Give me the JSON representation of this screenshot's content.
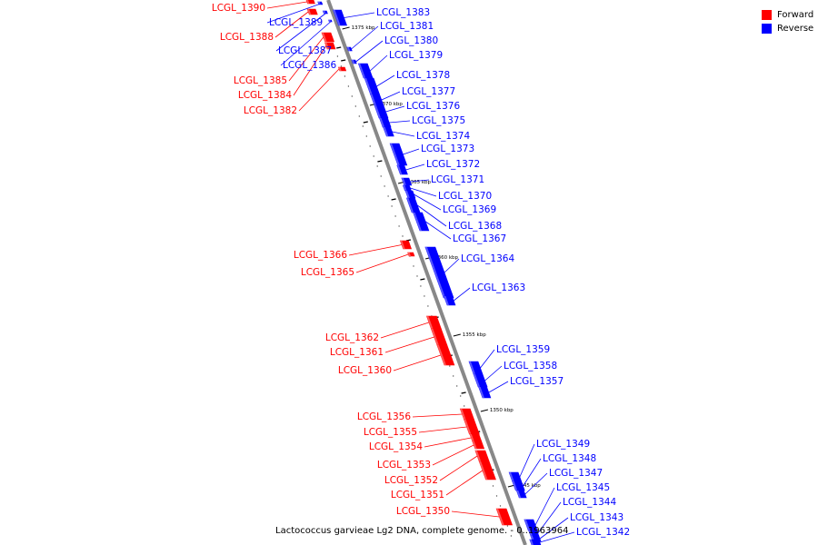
{
  "legend": [
    {
      "label": "Forward",
      "color": "#ff0000"
    },
    {
      "label": "Reverse",
      "color": "#0000ff"
    }
  ],
  "caption": "Lactococcus garvieae Lg2 DNA, complete genome. - 0..1963964",
  "backbone_color": "#888888",
  "gene_colors": {
    "forward": "#ff0000",
    "reverse": "#0000ff"
  },
  "ticks": [
    "1375 kbp",
    "1370 kbp",
    "1365 kbp",
    "1360 kbp",
    "1355 kbp",
    "1350 kbp",
    "1345 kbp"
  ],
  "genes": [
    {
      "name": "LCGL_1390",
      "strand": "forward"
    },
    {
      "name": "LCGL_1389",
      "strand": "reverse"
    },
    {
      "name": "LCGL_1388",
      "strand": "forward"
    },
    {
      "name": "LCGL_1387",
      "strand": "reverse"
    },
    {
      "name": "LCGL_1386",
      "strand": "reverse"
    },
    {
      "name": "LCGL_1385",
      "strand": "forward"
    },
    {
      "name": "LCGL_1384",
      "strand": "forward"
    },
    {
      "name": "LCGL_1383",
      "strand": "reverse"
    },
    {
      "name": "LCGL_1382",
      "strand": "forward"
    },
    {
      "name": "LCGL_1381",
      "strand": "reverse"
    },
    {
      "name": "LCGL_1380",
      "strand": "reverse"
    },
    {
      "name": "LCGL_1379",
      "strand": "reverse"
    },
    {
      "name": "LCGL_1378",
      "strand": "reverse"
    },
    {
      "name": "LCGL_1377",
      "strand": "reverse"
    },
    {
      "name": "LCGL_1376",
      "strand": "reverse"
    },
    {
      "name": "LCGL_1375",
      "strand": "reverse"
    },
    {
      "name": "LCGL_1374",
      "strand": "reverse"
    },
    {
      "name": "LCGL_1373",
      "strand": "reverse"
    },
    {
      "name": "LCGL_1372",
      "strand": "reverse"
    },
    {
      "name": "LCGL_1371",
      "strand": "reverse"
    },
    {
      "name": "LCGL_1370",
      "strand": "reverse"
    },
    {
      "name": "LCGL_1369",
      "strand": "reverse"
    },
    {
      "name": "LCGL_1368",
      "strand": "reverse"
    },
    {
      "name": "LCGL_1367",
      "strand": "reverse"
    },
    {
      "name": "LCGL_1366",
      "strand": "forward"
    },
    {
      "name": "LCGL_1365",
      "strand": "forward"
    },
    {
      "name": "LCGL_1364",
      "strand": "reverse"
    },
    {
      "name": "LCGL_1363",
      "strand": "reverse"
    },
    {
      "name": "LCGL_1362",
      "strand": "forward"
    },
    {
      "name": "LCGL_1361",
      "strand": "forward"
    },
    {
      "name": "LCGL_1360",
      "strand": "forward"
    },
    {
      "name": "LCGL_1359",
      "strand": "reverse"
    },
    {
      "name": "LCGL_1358",
      "strand": "reverse"
    },
    {
      "name": "LCGL_1357",
      "strand": "reverse"
    },
    {
      "name": "LCGL_1356",
      "strand": "forward"
    },
    {
      "name": "LCGL_1355",
      "strand": "forward"
    },
    {
      "name": "LCGL_1354",
      "strand": "forward"
    },
    {
      "name": "LCGL_1353",
      "strand": "forward"
    },
    {
      "name": "LCGL_1352",
      "strand": "forward"
    },
    {
      "name": "LCGL_1351",
      "strand": "forward"
    },
    {
      "name": "LCGL_1350",
      "strand": "forward"
    },
    {
      "name": "LCGL_1349",
      "strand": "reverse"
    },
    {
      "name": "LCGL_1348",
      "strand": "reverse"
    },
    {
      "name": "LCGL_1347",
      "strand": "reverse"
    },
    {
      "name": "LCGL_1345",
      "strand": "reverse"
    },
    {
      "name": "LCGL_1344",
      "strand": "reverse"
    },
    {
      "name": "LCGL_1343",
      "strand": "reverse"
    },
    {
      "name": "LCGL_1342",
      "strand": "reverse"
    }
  ]
}
